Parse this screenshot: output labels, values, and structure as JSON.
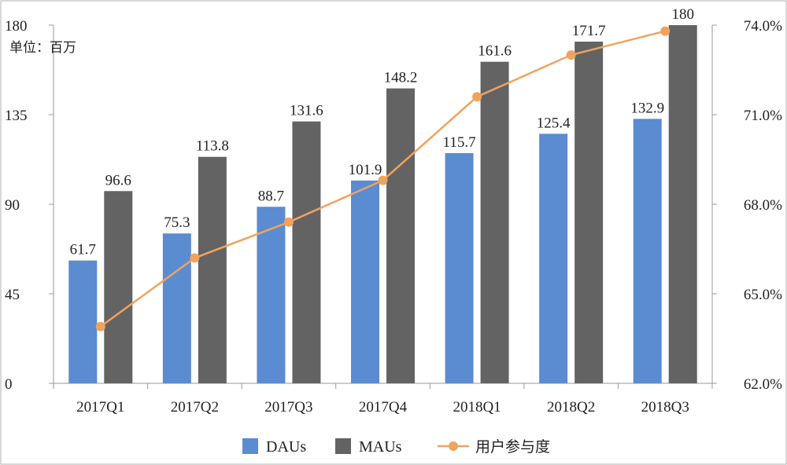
{
  "colors": {
    "dau": "#5b8bd0",
    "mau": "#636363",
    "engagement": "#f0a35e",
    "axis": "#9a9a9a",
    "frame": "#b0b0b0"
  },
  "chart_data": {
    "type": "bar",
    "unit_label": "单位：百万",
    "categories": [
      "2017Q1",
      "2017Q2",
      "2017Q3",
      "2017Q4",
      "2018Q1",
      "2018Q2",
      "2018Q3"
    ],
    "series": [
      {
        "name": "DAUs",
        "type": "bar",
        "axis": "left",
        "values": [
          61.7,
          75.3,
          88.7,
          101.9,
          115.7,
          125.4,
          132.9
        ],
        "value_labels": [
          "61.7",
          "75.3",
          "88.7",
          "101.9",
          "115.7",
          "125.4",
          "132.9"
        ]
      },
      {
        "name": "MAUs",
        "type": "bar",
        "axis": "left",
        "values": [
          96.6,
          113.8,
          131.6,
          148.2,
          161.6,
          171.7,
          180
        ],
        "value_labels": [
          "96.6",
          "113.8",
          "131.6",
          "148.2",
          "161.6",
          "171.7",
          "180"
        ]
      },
      {
        "name": "用户参与度",
        "type": "line",
        "axis": "right",
        "values": [
          63.9,
          66.2,
          67.4,
          68.8,
          71.6,
          73.0,
          73.8
        ]
      }
    ],
    "y_left": {
      "min": 0,
      "max": 180,
      "ticks": [
        "0",
        "45",
        "90",
        "135",
        "180"
      ]
    },
    "y_right": {
      "min": 62.0,
      "max": 74.0,
      "ticks": [
        "62.0%",
        "65.0%",
        "68.0%",
        "71.0%",
        "74.0%"
      ]
    },
    "legend": {
      "position": "bottom",
      "items": [
        "DAUs",
        "MAUs",
        "用户参与度"
      ]
    },
    "grid": false
  }
}
